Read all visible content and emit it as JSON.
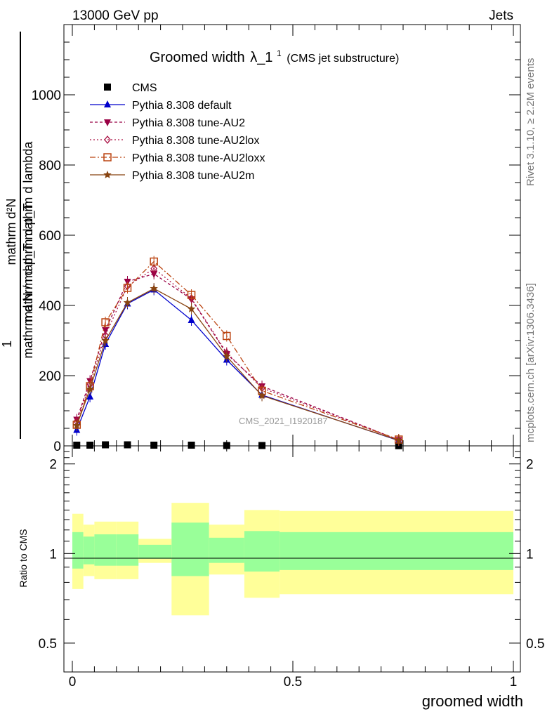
{
  "header": {
    "energy": "13000 GeV pp",
    "category": "Jets"
  },
  "side": {
    "rivet": "Rivet 3.1.10, ≥ 2.2M events",
    "site": "mcplots.cern.ch [arXiv:1306.3436]"
  },
  "watermark": "CMS_2021_I1920187",
  "chart_data": {
    "type": "line",
    "title_main": "Groomed width",
    "title_symbol": "λ_1",
    "title_sup": "1",
    "title_note": "(CMS jet substructure)",
    "ylabel_num": "mathrm d²N",
    "ylabel_den": "mathrm d p_T mathrm d lambda",
    "ylabel_frac_num": "1",
    "ylabel_frac_den": "mathrm d N / mathrm d p_T",
    "ratio_ylabel": "Ratio to CMS",
    "xlabel": "groomed width",
    "xlim": [
      0,
      1
    ],
    "ylim": [
      0,
      1200
    ],
    "ratio_ylim": [
      0.4,
      2.3
    ],
    "x_ticklabels": [
      "0",
      "0.5",
      "1"
    ],
    "y_ticklabels": [
      "0",
      "200",
      "400",
      "600",
      "800",
      "1000"
    ],
    "ratio_ticklabels": [
      "0.5",
      "1",
      "2"
    ],
    "x": [
      0.01,
      0.04,
      0.075,
      0.125,
      0.185,
      0.27,
      0.35,
      0.43,
      0.74
    ],
    "series": [
      {
        "name": "CMS",
        "values": [
          2,
          2,
          3,
          3,
          2,
          2,
          1,
          1,
          0.5
        ],
        "color": "#000000",
        "marker": "square",
        "dash": ""
      },
      {
        "name": "Pythia 8.308 default",
        "values": [
          45,
          140,
          290,
          405,
          445,
          358,
          245,
          145,
          15
        ],
        "color": "#0000cc",
        "marker": "triangle-up",
        "dash": ""
      },
      {
        "name": "Pythia 8.308 tune-AU2",
        "values": [
          75,
          185,
          330,
          468,
          490,
          418,
          262,
          170,
          17
        ],
        "color": "#990044",
        "marker": "triangle-down",
        "dash": "4,3"
      },
      {
        "name": "Pythia 8.308 tune-AU2lox",
        "values": [
          70,
          175,
          315,
          455,
          505,
          420,
          265,
          165,
          17
        ],
        "color": "#aa1144",
        "marker": "diamond",
        "dash": "2,3"
      },
      {
        "name": "Pythia 8.308 tune-AU2loxx",
        "values": [
          60,
          170,
          352,
          450,
          525,
          430,
          313,
          157,
          18
        ],
        "color": "#bb4411",
        "marker": "open-square",
        "dash": "8,3,2,3"
      },
      {
        "name": "Pythia 8.308 tune-AU2m",
        "values": [
          58,
          162,
          300,
          408,
          448,
          390,
          255,
          143,
          16
        ],
        "color": "#884411",
        "marker": "star",
        "dash": ""
      }
    ],
    "ratio_bands": [
      {
        "x0": 0.0,
        "x1": 0.025,
        "in_lo": 0.89,
        "in_hi": 1.18,
        "out_lo": 0.76,
        "out_hi": 1.36
      },
      {
        "x0": 0.025,
        "x1": 0.05,
        "in_lo": 0.92,
        "in_hi": 1.14,
        "out_lo": 0.84,
        "out_hi": 1.25
      },
      {
        "x0": 0.05,
        "x1": 0.1,
        "in_lo": 0.91,
        "in_hi": 1.16,
        "out_lo": 0.82,
        "out_hi": 1.28
      },
      {
        "x0": 0.1,
        "x1": 0.15,
        "in_lo": 0.91,
        "in_hi": 1.16,
        "out_lo": 0.82,
        "out_hi": 1.28
      },
      {
        "x0": 0.15,
        "x1": 0.225,
        "in_lo": 0.96,
        "in_hi": 1.07,
        "out_lo": 0.93,
        "out_hi": 1.12
      },
      {
        "x0": 0.225,
        "x1": 0.31,
        "in_lo": 0.84,
        "in_hi": 1.27,
        "out_lo": 0.62,
        "out_hi": 1.48
      },
      {
        "x0": 0.31,
        "x1": 0.39,
        "in_lo": 0.93,
        "in_hi": 1.13,
        "out_lo": 0.85,
        "out_hi": 1.25
      },
      {
        "x0": 0.39,
        "x1": 0.47,
        "in_lo": 0.87,
        "in_hi": 1.19,
        "out_lo": 0.71,
        "out_hi": 1.4
      },
      {
        "x0": 0.47,
        "x1": 1.0,
        "in_lo": 0.88,
        "in_hi": 1.18,
        "out_lo": 0.73,
        "out_hi": 1.39
      }
    ]
  }
}
